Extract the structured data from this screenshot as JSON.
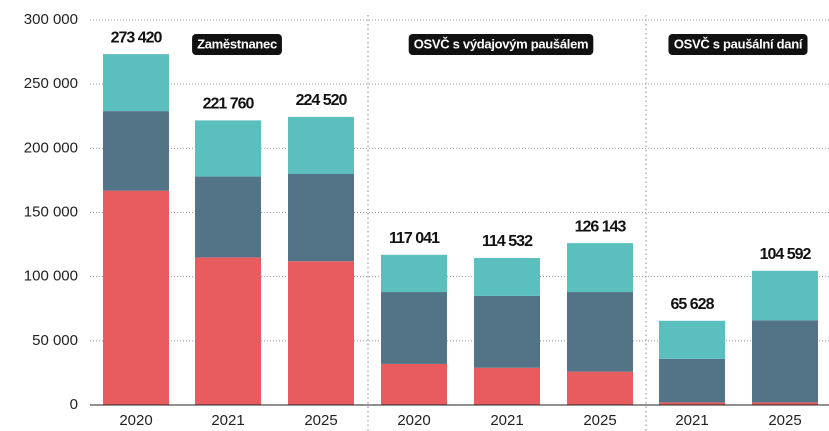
{
  "chart_data": {
    "type": "stacked_bar",
    "categories": [
      "2020",
      "2021",
      "2025",
      "2020",
      "2021",
      "2025",
      "2021",
      "2025"
    ],
    "groups": [
      "Zaměstnanec",
      "OSVČ s výdajovým paušálem",
      "OSVČ s paušální daní"
    ],
    "series": [
      {
        "color": "#e85c5f",
        "values": [
          167000,
          115000,
          112000,
          32000,
          29000,
          26000,
          2000,
          2000
        ]
      },
      {
        "color": "#537387",
        "values": [
          62000,
          63000,
          68000,
          56000,
          56000,
          62000,
          34000,
          64000
        ]
      },
      {
        "color": "#5bbfbe",
        "values": [
          44420,
          43760,
          44520,
          29041,
          29532,
          38143,
          29628,
          38592
        ]
      }
    ],
    "totals": {
      "values": [
        273420,
        221760,
        224520,
        117041,
        114532,
        126143,
        65628,
        104592
      ],
      "value_labels": [
        "273 420",
        "221 760",
        "224 520",
        "117 041",
        "114 532",
        "126 143",
        "65 628",
        "104 592"
      ]
    },
    "ylim": [
      0,
      300000
    ],
    "yticks": [
      0,
      {
        "value": 50000,
        "label": "50 000"
      },
      {
        "value": 100000,
        "label": "100 000"
      },
      {
        "value": 150000,
        "label": "150 000"
      },
      {
        "value": 200000,
        "label": "200 000"
      },
      {
        "value": 250000,
        "label": "250 000"
      },
      {
        "value": 300000,
        "label": "300 000"
      }
    ],
    "grid": true
  }
}
